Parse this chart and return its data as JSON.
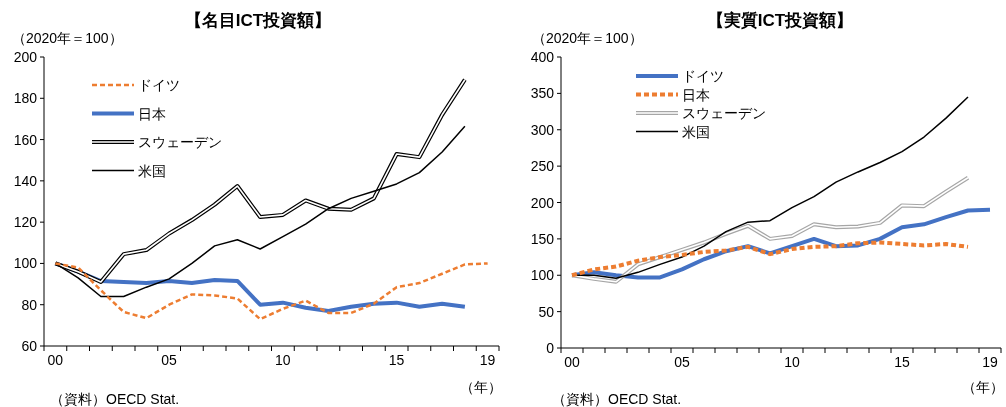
{
  "chart_data": [
    {
      "type": "line",
      "title": "【名目ICT投資額】",
      "ylabel": "（2020年＝100）",
      "xlabel": "（年）",
      "annotations": [
        "（資料）OECD Stat."
      ],
      "categories": [
        "00",
        null,
        null,
        null,
        null,
        "05",
        null,
        null,
        null,
        null,
        "10",
        null,
        null,
        null,
        null,
        "15",
        null,
        null,
        null,
        "19"
      ],
      "ylim": [
        60,
        200
      ],
      "yticks": [
        60,
        80,
        100,
        120,
        140,
        160,
        180,
        200
      ],
      "grid": false,
      "legend": "top left",
      "marker": "none",
      "series": [
        {
          "name": "ドイツ",
          "color": "#ed7d31",
          "line_style": "dashed",
          "values": [
            100,
            98,
            87,
            76.5,
            73.5,
            80,
            85,
            84.5,
            83,
            73,
            78,
            82,
            76,
            76,
            80.5,
            88.5,
            90.5,
            95,
            99.5,
            100
          ]
        },
        {
          "name": "日本",
          "color": "#4472c4",
          "line_style": "solid",
          "values": [
            100,
            96,
            91.5,
            91,
            90.5,
            91.5,
            90.5,
            92,
            91.5,
            80,
            81,
            78.5,
            77,
            79,
            80.5,
            81,
            79,
            80.5,
            79,
            null
          ]
        },
        {
          "name": "スウェーデン",
          "color": "#000000",
          "line_style": "solid",
          "values": [
            100,
            96,
            91,
            104.5,
            106.5,
            114.5,
            121,
            128.5,
            137.5,
            122.5,
            123.5,
            130.5,
            126.5,
            126,
            131.5,
            153,
            151.5,
            172,
            189,
            null
          ]
        },
        {
          "name": "米国",
          "color": "#000000",
          "line_style": "solid",
          "values": [
            100,
            93,
            84,
            84,
            88.5,
            92.5,
            100,
            108.5,
            111.5,
            107,
            113,
            119,
            126.5,
            131.5,
            135,
            138.5,
            144,
            154,
            166.5,
            null
          ]
        }
      ]
    },
    {
      "type": "line",
      "title": "【実質ICT投資額】",
      "ylabel": "（2020年＝100）",
      "xlabel": "（年）",
      "annotations": [
        "（資料）OECD Stat."
      ],
      "categories": [
        "00",
        null,
        null,
        null,
        null,
        "05",
        null,
        null,
        null,
        null,
        "10",
        null,
        null,
        null,
        null,
        "15",
        null,
        null,
        null,
        "19"
      ],
      "ylim": [
        0,
        400
      ],
      "yticks": [
        0,
        50,
        100,
        150,
        200,
        250,
        300,
        350,
        400
      ],
      "grid": false,
      "legend": "top left",
      "marker": "none",
      "series": [
        {
          "name": "ドイツ",
          "color": "#4472c4",
          "line_style": "solid",
          "values": [
            100,
            104,
            100,
            97,
            97,
            108,
            122,
            133,
            140,
            130,
            140,
            150,
            140,
            141,
            150,
            166,
            170,
            180,
            189,
            190
          ]
        },
        {
          "name": "日本",
          "color": "#ed7d31",
          "line_style": "dashed",
          "values": [
            100,
            108,
            112,
            120,
            125,
            128,
            132,
            134,
            139,
            129,
            136,
            139,
            140,
            144,
            145,
            143,
            141,
            143,
            139,
            null
          ]
        },
        {
          "name": "スウェーデン",
          "color": "#a6a6a6",
          "line_style": "solid",
          "values": [
            100,
            95,
            91,
            115,
            125,
            135,
            145,
            157,
            168,
            150,
            154,
            170,
            166,
            167,
            172,
            196,
            195,
            215,
            234,
            null
          ]
        },
        {
          "name": "米国",
          "color": "#000000",
          "line_style": "solid",
          "values": [
            100,
            100,
            96,
            104,
            115,
            125,
            140,
            160,
            173,
            175,
            193,
            208,
            228,
            242,
            255,
            270,
            290,
            316,
            345,
            null
          ]
        }
      ]
    }
  ]
}
